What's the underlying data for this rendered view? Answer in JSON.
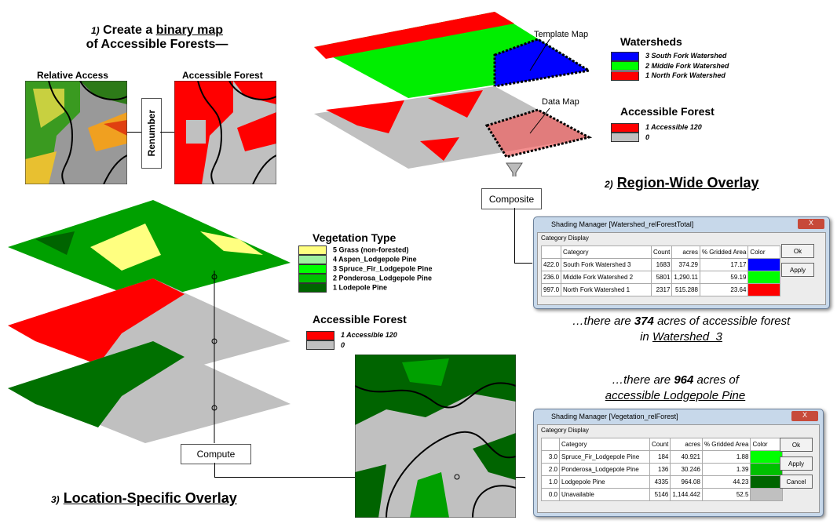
{
  "step1": {
    "num": "1)",
    "title_a": "Create a",
    "title_u": "binary map",
    "title_b": "of Accessible Forests—",
    "relative_access": "Relative Access",
    "accessible_forest": "Accessible Forest",
    "renumber": "Renumber"
  },
  "step2": {
    "num": "2)",
    "title": "Region-Wide Overlay",
    "template_map": "Template Map",
    "data_map": "Data Map",
    "composite": "Composite",
    "watersheds_title": "Watersheds",
    "watersheds": [
      {
        "label": "3 South Fork Watershed",
        "color": "#0000ff"
      },
      {
        "label": "2 Middle Fork Watershed",
        "color": "#00ff00"
      },
      {
        "label": "1 North Fork Watershed",
        "color": "#ff0000"
      }
    ],
    "af_title": "Accessible Forest",
    "af": [
      {
        "label": "1 Accessible 120",
        "color": "#ff0000"
      },
      {
        "label": "0",
        "color": "#c0c0c0"
      }
    ],
    "finding_a": "…there are",
    "finding_num": "374",
    "finding_b": "acres of accessible forest",
    "finding_c": "in",
    "finding_u": "Watershed_3"
  },
  "window1": {
    "title": "Shading Manager [Watershed_relForestTotal]",
    "close": "X",
    "tab": "Category Display",
    "headers": [
      "",
      "Category",
      "Count",
      "acres",
      "% Gridded Area",
      "Color"
    ],
    "rows": [
      {
        "v": "422.0",
        "cat": "South Fork Watershed 3",
        "count": "1683",
        "acres": "374.29",
        "pct": "17.17",
        "color": "#0000ff"
      },
      {
        "v": "236.0",
        "cat": "Middle Fork Watershed 2",
        "count": "5801",
        "acres": "1,290.11",
        "pct": "59.19",
        "color": "#00ff00"
      },
      {
        "v": "997.0",
        "cat": "North Fork Watershed 1",
        "count": "2317",
        "acres": "515.288",
        "pct": "23.64",
        "color": "#ff0000"
      }
    ],
    "ok": "Ok",
    "apply": "Apply"
  },
  "step3": {
    "num": "3)",
    "title": "Location-Specific Overlay",
    "compute": "Compute",
    "veg_title": "Vegetation Type",
    "veg": [
      {
        "label": "5 Grass (non-forested)",
        "color": "#ffff80"
      },
      {
        "label": "4 Aspen_Lodgepole Pine",
        "color": "#a0f0a0"
      },
      {
        "label": "3 Spruce_Fir_Lodgepole Pine",
        "color": "#00ff00"
      },
      {
        "label": "2 Ponderosa_Lodgepole Pine",
        "color": "#00c000"
      },
      {
        "label": "1 Lodepole Pine",
        "color": "#006400"
      }
    ],
    "af_title": "Accessible Forest",
    "af": [
      {
        "label": "1 Accessible 120",
        "color": "#ff0000"
      },
      {
        "label": "0",
        "color": "#c0c0c0"
      }
    ],
    "finding_a": "…there are",
    "finding_num": "964",
    "finding_b": "acres of",
    "finding_u": "accessible Lodgepole Pine"
  },
  "window2": {
    "title": "Shading Manager [Vegetation_relForest]",
    "close": "X",
    "tab": "Category Display",
    "headers": [
      "",
      "Category",
      "Count",
      "acres",
      "% Gridded Area",
      "Color"
    ],
    "rows": [
      {
        "v": "3.0",
        "cat": "Spruce_Fir_Lodgepole Pine",
        "count": "184",
        "acres": "40.921",
        "pct": "1.88",
        "color": "#00ff00"
      },
      {
        "v": "2.0",
        "cat": "Ponderosa_Lodgepole Pine",
        "count": "136",
        "acres": "30.246",
        "pct": "1.39",
        "color": "#00c000"
      },
      {
        "v": "1.0",
        "cat": "Lodgepole Pine",
        "count": "4335",
        "acres": "964.08",
        "pct": "44.23",
        "color": "#006400"
      },
      {
        "v": "0.0",
        "cat": "Unavailable",
        "count": "5146",
        "acres": "1,144.442",
        "pct": "52.5",
        "color": "#c0c0c0"
      }
    ],
    "ok": "Ok",
    "apply": "Apply",
    "cancel": "Cancel"
  }
}
